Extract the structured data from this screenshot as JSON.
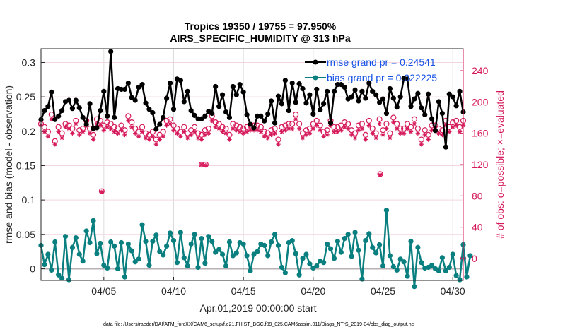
{
  "chart_data": {
    "type": "line",
    "title": [
      "Tropics 19350 / 19755 = 97.950%",
      "AIRS_SPECIFIC_HUMIDITY @ 313 hPa"
    ],
    "xlabel": "Apr.01,2019 00:00:00 start",
    "ylabel": "rmse and bias (model - observation)",
    "ylabel_right": "# of obs: o=possible; ×=evaluated",
    "x_units": "days since Apr.01,2019 00:00:00",
    "xlim": [
      -0.5,
      29.75
    ],
    "ylim": [
      -0.017,
      0.32
    ],
    "ylim_right": [
      -28,
      268
    ],
    "x_ticks": [
      {
        "value": 4,
        "label": "04/05"
      },
      {
        "value": 9,
        "label": "04/10"
      },
      {
        "value": 14,
        "label": "04/15"
      },
      {
        "value": 19,
        "label": "04/20"
      },
      {
        "value": 24,
        "label": "04/25"
      },
      {
        "value": 29,
        "label": "04/30"
      }
    ],
    "y_ticks": [
      {
        "value": 0,
        "label": "0"
      },
      {
        "value": 0.05,
        "label": "0.05"
      },
      {
        "value": 0.1,
        "label": "0.1"
      },
      {
        "value": 0.15,
        "label": "0.15"
      },
      {
        "value": 0.2,
        "label": "0.2"
      },
      {
        "value": 0.25,
        "label": "0.25"
      },
      {
        "value": 0.3,
        "label": "0.3"
      }
    ],
    "y_ticks_right": [
      {
        "value": 0,
        "label": "0"
      },
      {
        "value": 40,
        "label": "40"
      },
      {
        "value": 80,
        "label": "80"
      },
      {
        "value": 120,
        "label": "120"
      },
      {
        "value": 160,
        "label": "160"
      },
      {
        "value": 200,
        "label": "200"
      },
      {
        "value": 240,
        "label": "240"
      }
    ],
    "grid": true,
    "legend_position": "top-right",
    "x_start": -0.5,
    "x_step": 0.25,
    "series": [
      {
        "name": "rmse grand pr = 0.24541",
        "axis": "left",
        "color": "#000000",
        "marker": "filled-circle",
        "values": [
          0.217,
          0.23,
          0.236,
          0.257,
          0.217,
          0.222,
          0.23,
          0.243,
          0.245,
          0.233,
          0.245,
          0.234,
          0.22,
          0.21,
          0.24,
          0.204,
          0.205,
          0.23,
          0.258,
          0.222,
          0.316,
          0.22,
          0.262,
          0.261,
          0.261,
          0.27,
          0.249,
          0.245,
          0.264,
          0.268,
          0.241,
          0.232,
          0.227,
          0.203,
          0.21,
          0.22,
          0.248,
          0.27,
          0.232,
          0.276,
          0.274,
          0.243,
          0.258,
          0.23,
          0.223,
          0.218,
          0.218,
          0.222,
          0.229,
          0.226,
          0.265,
          0.236,
          0.253,
          0.228,
          0.22,
          0.265,
          0.253,
          0.268,
          0.257,
          0.224,
          0.21,
          0.205,
          0.222,
          0.222,
          0.215,
          0.225,
          0.244,
          0.212,
          0.251,
          0.24,
          0.274,
          0.23,
          0.27,
          0.242,
          0.269,
          0.262,
          0.241,
          0.253,
          0.225,
          0.261,
          0.231,
          0.24,
          0.258,
          0.212,
          0.258,
          0.268,
          0.268,
          0.264,
          0.247,
          0.25,
          0.26,
          0.244,
          0.258,
          0.248,
          0.27,
          0.258,
          0.253,
          0.242,
          0.247,
          0.226,
          0.262,
          0.248,
          0.235,
          0.25,
          0.277,
          0.276,
          0.236,
          0.247,
          0.255,
          0.234,
          0.224,
          0.254,
          0.218,
          0.201,
          0.243,
          0.226,
          0.177,
          0.254,
          0.25,
          0.237,
          0.258,
          0.228
        ]
      },
      {
        "name": "bias grand pr = 0.022225",
        "axis": "left",
        "color": "#0a7f7f",
        "marker": "filled-circle",
        "values": [
          0.034,
          0.006,
          0.021,
          -0.002,
          0.039,
          -0.009,
          -0.014,
          0.047,
          -0.016,
          0.031,
          0.045,
          0.021,
          0.011,
          0.055,
          0.038,
          0.07,
          0.022,
          0.037,
          0.005,
          0.001,
          0.039,
          0.033,
          0.0,
          0.038,
          -0.012,
          0.036,
          0.026,
          0.01,
          0.014,
          0.064,
          0.04,
          0.005,
          0.04,
          0.049,
          0.025,
          0.02,
          0.033,
          0.052,
          0.041,
          0.009,
          0.053,
          0.016,
          0.004,
          0.036,
          0.05,
          0.002,
          0.044,
          0.008,
          0.047,
          0.04,
          0.024,
          0.028,
          0.021,
          0.004,
          0.039,
          0.019,
          0.023,
          0.038,
          0.036,
          0.019,
          -0.003,
          0.021,
          0.025,
          0.036,
          0.034,
          0.019,
          0.039,
          0.05,
          0.034,
          0.002,
          -0.006,
          0.038,
          0.041,
          0.022,
          -0.009,
          0.015,
          0.021,
          0.007,
          0.001,
          0.004,
          0.011,
          0.009,
          0.036,
          0.029,
          0.015,
          0.04,
          0.024,
          0.044,
          0.05,
          0.018,
          0.053,
          0.027,
          -0.015,
          0.041,
          0.051,
          0.031,
          0.023,
          0.035,
          0.004,
          0.085,
          0.019,
          0.003,
          -0.002,
          0.014,
          0.01,
          -0.011,
          0.04,
          -0.026,
          0.031,
          0.009,
          0.001,
          0.002,
          0.005,
          0.0,
          -0.003,
          0.016,
          -0.003,
          0.002,
          0.021,
          -0.01,
          -0.016,
          0.035,
          -0.012,
          0.019
        ]
      },
      {
        "name": "obs possible",
        "axis": "right",
        "color": "#d6195a",
        "marker": "open-circle",
        "values": [
          172,
          168,
          162,
          184,
          150,
          168,
          160,
          172,
          170,
          166,
          176,
          164,
          166,
          176,
          166,
          158,
          178,
          176,
          170,
          174,
          172,
          168,
          166,
          170,
          164,
          182,
          174,
          166,
          162,
          168,
          160,
          158,
          162,
          152,
          158,
          162,
          176,
          178,
          170,
          166,
          162,
          168,
          160,
          164,
          168,
          160,
          158,
          164,
          166,
          182,
          174,
          172,
          168,
          166,
          158,
          172,
          170,
          168,
          166,
          168,
          170,
          170,
          170,
          168,
          162,
          160,
          164,
          166,
          152,
          168,
          170,
          172,
          172,
          184,
          172,
          160,
          164,
          166,
          172,
          176,
          170,
          162,
          164,
          176,
          168,
          168,
          170,
          174,
          172,
          164,
          160,
          170,
          172,
          158,
          176,
          166,
          160,
          178,
          164,
          172,
          160,
          180,
          172,
          166,
          166,
          172,
          168,
          178,
          166,
          152,
          164,
          158,
          170,
          170,
          166,
          164,
          176,
          168,
          174,
          176,
          168,
          176
        ]
      },
      {
        "name": "obs evaluated",
        "axis": "right",
        "color": "#d6195a",
        "marker": "asterisk",
        "values": [
          170,
          162,
          156,
          178,
          146,
          162,
          154,
          168,
          166,
          160,
          172,
          158,
          162,
          170,
          160,
          152,
          172,
          170,
          164,
          168,
          166,
          162,
          160,
          164,
          158,
          176,
          168,
          160,
          156,
          162,
          154,
          152,
          156,
          146,
          152,
          156,
          170,
          172,
          164,
          160,
          156,
          162,
          154,
          158,
          162,
          154,
          152,
          158,
          160,
          176,
          168,
          166,
          162,
          160,
          152,
          166,
          164,
          162,
          160,
          162,
          164,
          164,
          164,
          162,
          156,
          154,
          158,
          160,
          146,
          162,
          164,
          166,
          166,
          178,
          166,
          154,
          158,
          160,
          166,
          170,
          164,
          156,
          158,
          170,
          162,
          162,
          164,
          168,
          166,
          158,
          154,
          164,
          166,
          152,
          170,
          160,
          154,
          172,
          158,
          166,
          154,
          174,
          166,
          160,
          160,
          166,
          162,
          172,
          160,
          146,
          158,
          152,
          164,
          164,
          160,
          158,
          170,
          162,
          168,
          170,
          162,
          170
        ]
      }
    ],
    "outliers_right": [
      {
        "x": 3.85,
        "possible": 86,
        "evaluated": 85
      },
      {
        "x": 11.0,
        "possible": 120,
        "evaluated": 120
      },
      {
        "x": 11.3,
        "possible": 120,
        "evaluated": 119
      },
      {
        "x": 23.8,
        "possible": 108,
        "evaluated": 107
      },
      {
        "x": 29.75,
        "possible": 0,
        "evaluated": 0
      }
    ],
    "legend": [
      {
        "label": "rmse grand pr = 0.24541",
        "color": "#000000"
      },
      {
        "label": "bias grand pr = 0.022225",
        "color": "#0a7f7f"
      }
    ],
    "footnote": "data file: /Users/raeder/DAI/ATM_forcXX/CAM6_setup/f.e21.FHIST_BGC.f09_025.CAM6assim.011/Diags_NTrS_2019-04/obs_diag_output.nc"
  },
  "colors": {
    "axis": "#262626",
    "right_axis": "#d6195a",
    "grid_x": "#dcdcdc",
    "grid_y": "#f2d6df",
    "zero_line": "#b8b0b4"
  }
}
